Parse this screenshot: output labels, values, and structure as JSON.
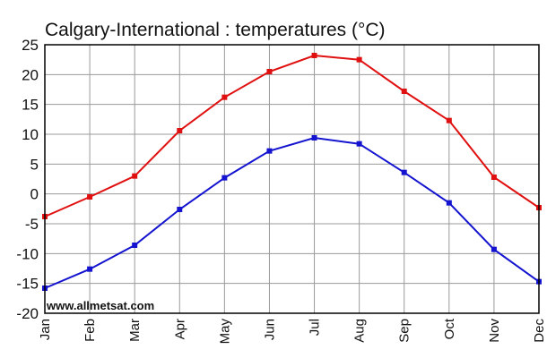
{
  "chart_data": {
    "type": "line",
    "title": "Calgary-International : temperatures (°C)",
    "xlabel": "",
    "ylabel": "",
    "categories": [
      "Jan",
      "Feb",
      "Mar",
      "Apr",
      "May",
      "Jun",
      "Jul",
      "Aug",
      "Sep",
      "Oct",
      "Nov",
      "Dec"
    ],
    "ylim": [
      -20,
      25
    ],
    "yticks": [
      25,
      20,
      15,
      10,
      5,
      0,
      -5,
      -10,
      -15,
      -20
    ],
    "grid": true,
    "legend": "none",
    "series": [
      {
        "color": "#e01010",
        "values": [
          -3.8,
          -0.5,
          3.0,
          10.6,
          16.2,
          20.5,
          23.2,
          22.5,
          17.2,
          12.3,
          2.8,
          -2.3
        ]
      },
      {
        "color": "#1414d0",
        "values": [
          -15.8,
          -12.6,
          -8.6,
          -2.6,
          2.7,
          7.2,
          9.4,
          8.4,
          3.6,
          -1.5,
          -9.3,
          -14.7
        ]
      }
    ],
    "watermark": "www.allmetsat.com"
  }
}
